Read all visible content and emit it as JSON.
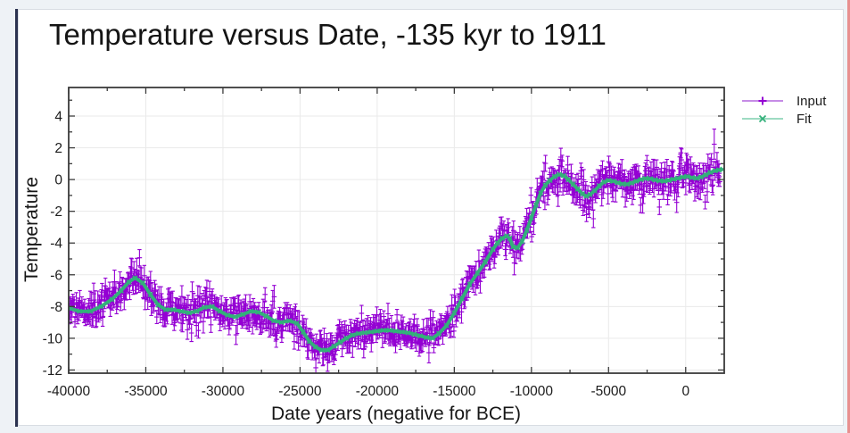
{
  "page": {
    "background": "#eef2f6",
    "card_background": "#ffffff",
    "card_border": "#d8dde3",
    "left_accent_color": "#2b3250",
    "right_strip_color": "#e88f8f"
  },
  "chart": {
    "title": "Temperature versus Date, -135 kyr to 1911",
    "text_color": "#161616",
    "tick_label_color": "#1c1c1c",
    "axis_color": "#3b3b3b",
    "grid_color": "#eaeaea"
  },
  "chart_data": {
    "type": "line",
    "title": "Temperature versus Date, -135 kyr to 1911",
    "xlabel": "Date years (negative for BCE)",
    "ylabel": "Temperature",
    "xlim": [
      -40000,
      2500
    ],
    "ylim": [
      -12.2,
      5.8
    ],
    "x_ticks": [
      -40000,
      -35000,
      -30000,
      -25000,
      -20000,
      -15000,
      -10000,
      -5000,
      0
    ],
    "x_minor_step": 2500,
    "y_ticks": [
      4,
      2,
      0,
      -2,
      -4,
      -6,
      -8,
      -10,
      -12
    ],
    "y_minor_step": 1,
    "grid": true,
    "legend_position": "outside-right",
    "series": [
      {
        "name": "Input",
        "type": "scatter-errorbar",
        "color": "#9400d3",
        "marker": "plus",
        "synthesis": {
          "comment": "noisy samples scattered around the Fit curve with vertical error bars",
          "seed": 12345,
          "start": -40000,
          "end": 2250,
          "step": 45,
          "sigma": 0.5,
          "sigma_regions": [
            {
              "until": -25000,
              "scale": 1.0
            },
            {
              "until": -10500,
              "scale": 0.9
            },
            {
              "until": 2300,
              "scale": 1.15
            }
          ],
          "clip_dev": 1.7,
          "outlier_prob": 0.04,
          "outlier_sigma": 0.7,
          "errbar_min": 0.3,
          "errbar_range": 0.45,
          "final_spike": {
            "near": 1850,
            "offset": 1.7,
            "half_length": 0.95
          }
        }
      },
      {
        "name": "Fit",
        "type": "line",
        "color": "#33b07a",
        "marker": "x",
        "line_width": 4,
        "x": [
          -40000,
          -39300,
          -38600,
          -37900,
          -37200,
          -36600,
          -36100,
          -35700,
          -35200,
          -34700,
          -34200,
          -33700,
          -33200,
          -32700,
          -32200,
          -31700,
          -31200,
          -30700,
          -30200,
          -29700,
          -29200,
          -28700,
          -28200,
          -27700,
          -27200,
          -26700,
          -26200,
          -25700,
          -25200,
          -24800,
          -24400,
          -24000,
          -23600,
          -23200,
          -22800,
          -22400,
          -22000,
          -21600,
          -21200,
          -20800,
          -20400,
          -20000,
          -19600,
          -19200,
          -18800,
          -18400,
          -18000,
          -17600,
          -17200,
          -16800,
          -16400,
          -16000,
          -15500,
          -15000,
          -14500,
          -14000,
          -13500,
          -13000,
          -12500,
          -12200,
          -11900,
          -11600,
          -11400,
          -11200,
          -10900,
          -10600,
          -10300,
          -10000,
          -9700,
          -9400,
          -9100,
          -8800,
          -8500,
          -8200,
          -7900,
          -7600,
          -7300,
          -7000,
          -6700,
          -6450,
          -6200,
          -5900,
          -5600,
          -5300,
          -5000,
          -4700,
          -4400,
          -4100,
          -3800,
          -3500,
          -3200,
          -2900,
          -2600,
          -2300,
          -2000,
          -1700,
          -1400,
          -1100,
          -800,
          -500,
          -200,
          100,
          400,
          700,
          1000,
          1300,
          1600,
          1911,
          2150,
          2400
        ],
        "y": [
          -8.1,
          -8.3,
          -8.3,
          -8.0,
          -7.55,
          -7.0,
          -6.45,
          -6.2,
          -6.5,
          -7.25,
          -7.9,
          -8.2,
          -8.2,
          -8.3,
          -8.4,
          -8.3,
          -8.05,
          -8.0,
          -8.3,
          -8.55,
          -8.65,
          -8.5,
          -8.3,
          -8.35,
          -8.6,
          -8.9,
          -9.0,
          -8.9,
          -9.05,
          -9.6,
          -10.2,
          -10.55,
          -10.75,
          -10.75,
          -10.5,
          -10.25,
          -10.0,
          -9.8,
          -9.7,
          -9.65,
          -9.6,
          -9.55,
          -9.5,
          -9.5,
          -9.55,
          -9.6,
          -9.65,
          -9.75,
          -9.85,
          -9.95,
          -10.0,
          -9.7,
          -9.2,
          -8.4,
          -7.5,
          -6.6,
          -5.9,
          -5.2,
          -4.4,
          -4.0,
          -3.7,
          -3.55,
          -3.7,
          -4.25,
          -4.3,
          -3.9,
          -3.2,
          -2.4,
          -1.6,
          -0.85,
          -0.35,
          -0.05,
          0.2,
          0.32,
          0.25,
          0.0,
          -0.3,
          -0.6,
          -0.9,
          -1.05,
          -0.95,
          -0.7,
          -0.4,
          -0.15,
          -0.05,
          -0.1,
          -0.2,
          -0.28,
          -0.3,
          -0.22,
          -0.1,
          0.0,
          0.07,
          0.05,
          -0.02,
          -0.08,
          -0.1,
          -0.05,
          0.02,
          0.08,
          0.15,
          0.2,
          0.12,
          0.08,
          0.15,
          0.3,
          0.45,
          0.55,
          0.6,
          0.65
        ]
      }
    ]
  }
}
